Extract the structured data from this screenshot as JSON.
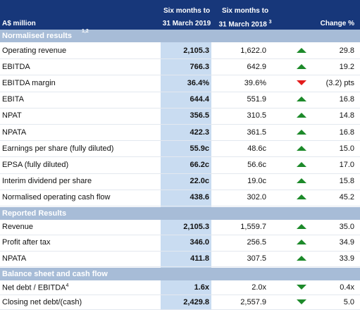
{
  "header": {
    "unit": "A$ million",
    "current": [
      "Six months to",
      "31 March 2019"
    ],
    "prior": [
      "Six months to",
      "31 March 2018"
    ],
    "prior_note": "3",
    "change": "Change %"
  },
  "sections": [
    {
      "title": "Normalised results",
      "note": "1,2",
      "rows": [
        {
          "label": "Operating revenue",
          "current": "2,105.3",
          "prior": "1,622.0",
          "change": "29.8"
        },
        {
          "label": "EBITDA",
          "current": "766.3",
          "prior": "642.9",
          "change": "19.2"
        },
        {
          "label": "EBITDA margin",
          "current": "36.4%",
          "prior": "39.6%",
          "change": "(3.2) pts"
        },
        {
          "label": "EBITA",
          "current": "644.4",
          "prior": "551.9",
          "change": "16.8"
        },
        {
          "label": "NPAT",
          "current": "356.5",
          "prior": "310.5",
          "change": "14.8"
        },
        {
          "label": "NPATA",
          "current": "422.3",
          "prior": "361.5",
          "change": "16.8"
        },
        {
          "label": "Earnings per share (fully diluted)",
          "current": "55.9c",
          "prior": "48.6c",
          "change": "15.0"
        },
        {
          "label": "EPSA (fully diluted)",
          "current": "66.2c",
          "prior": "56.6c",
          "change": "17.0"
        },
        {
          "label": "Interim dividend per share",
          "current": "22.0c",
          "prior": "19.0c",
          "change": "15.8"
        },
        {
          "label": "Normalised operating cash flow",
          "current": "438.6",
          "prior": "302.0",
          "change": "45.2"
        }
      ]
    },
    {
      "title": "Reported Results",
      "rows": [
        {
          "label": "Revenue",
          "current": "2,105.3",
          "prior": "1,559.7",
          "change": "35.0"
        },
        {
          "label": "Profit after tax",
          "current": "346.0",
          "prior": "256.5",
          "change": "34.9"
        },
        {
          "label": "NPATA",
          "current": "411.8",
          "prior": "307.5",
          "change": "33.9"
        }
      ]
    },
    {
      "title": "Balance sheet and cash flow",
      "rows": [
        {
          "label": "Net debt / EBITDA",
          "note": "4",
          "current": "1.6x",
          "prior": "2.0x",
          "change": "0.4x"
        },
        {
          "label": "Closing net debt/(cash)",
          "current": "2,429.8",
          "prior": "2,557.9",
          "change": "5.0"
        }
      ]
    }
  ]
}
